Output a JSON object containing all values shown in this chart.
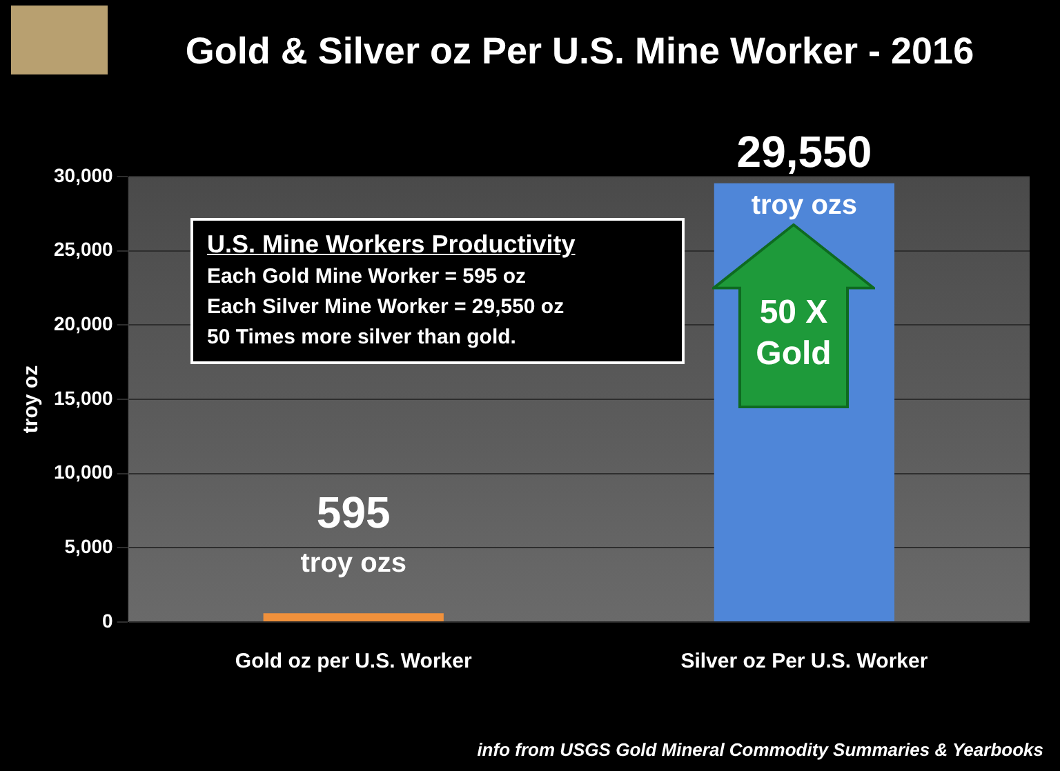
{
  "chart_data": {
    "type": "bar",
    "title": "Gold & Silver oz Per U.S. Mine Worker - 2016",
    "ylabel": "troy oz",
    "categories": [
      "Gold oz per U.S. Worker",
      "Silver oz Per U.S. Worker"
    ],
    "values": [
      595,
      29550
    ],
    "colors": [
      "#f0913c",
      "#4f86d8"
    ],
    "value_labels": [
      "595",
      "29,550"
    ],
    "ylim": [
      0,
      30000
    ],
    "yticks": [
      {
        "value": 0,
        "label": "0"
      },
      {
        "value": 5000,
        "label": "5,000"
      },
      {
        "value": 10000,
        "label": "10,000"
      },
      {
        "value": 15000,
        "label": "15,000"
      },
      {
        "value": 20000,
        "label": "20,000"
      },
      {
        "value": 25000,
        "label": "25,000"
      },
      {
        "value": 30000,
        "label": "30,000"
      }
    ],
    "grid": "y",
    "legend": false,
    "annotations": [
      "U.S. Mine Workers Productivity",
      "Each Gold Mine Worker = 595 oz",
      "Each Silver Mine Worker = 29,550 oz",
      "50 Times more silver than gold.",
      {
        "text": "troy ozs",
        "x": "Gold oz per U.S. Worker",
        "y": 595
      },
      {
        "text": "troy ozs",
        "x": "Silver oz Per U.S. Worker",
        "y": 29550
      },
      "50 X Gold",
      "info from USGS Gold Mineral Commodity Summaries & Yearbooks"
    ]
  }
}
